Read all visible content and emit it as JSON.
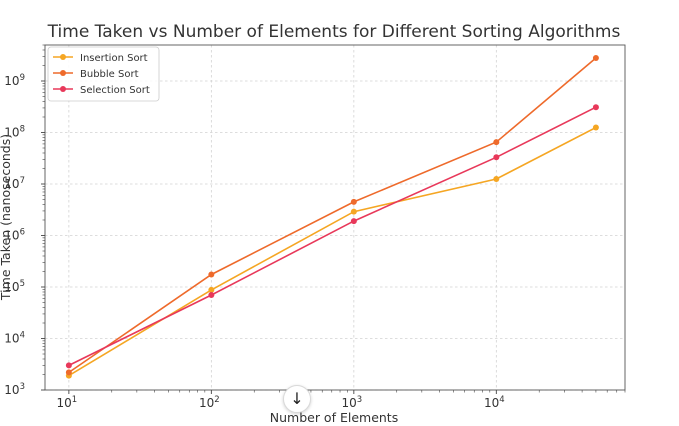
{
  "chart_data": {
    "type": "line",
    "title": "Time Taken vs Number of Elements for Different Sorting Algorithms",
    "xlabel": "Number of Elements",
    "ylabel": "Time Taken (nanoseconds)",
    "xscale": "log",
    "yscale": "log",
    "x": [
      10,
      100,
      1000,
      10000,
      50000
    ],
    "xlim": [
      6.8,
      80000
    ],
    "ylim": [
      1000,
      5000000000
    ],
    "grid": true,
    "legend_position": "top-left",
    "x_ticks": [
      {
        "value": 10,
        "base": "10",
        "exp": "1"
      },
      {
        "value": 100,
        "base": "10",
        "exp": "2"
      },
      {
        "value": 1000,
        "base": "10",
        "exp": "3"
      },
      {
        "value": 10000,
        "base": "10",
        "exp": "4"
      }
    ],
    "y_ticks": [
      {
        "value": 1000,
        "base": "10",
        "exp": "3"
      },
      {
        "value": 10000,
        "base": "10",
        "exp": "4"
      },
      {
        "value": 100000,
        "base": "10",
        "exp": "5"
      },
      {
        "value": 1000000,
        "base": "10",
        "exp": "6"
      },
      {
        "value": 10000000,
        "base": "10",
        "exp": "7"
      },
      {
        "value": 100000000,
        "base": "10",
        "exp": "8"
      },
      {
        "value": 1000000000,
        "base": "10",
        "exp": "9"
      }
    ],
    "series": [
      {
        "name": "Insertion Sort",
        "color": "#f5a623",
        "values": [
          1900,
          88000,
          2900000,
          12500000,
          125000000
        ]
      },
      {
        "name": "Bubble Sort",
        "color": "#ee6a2b",
        "values": [
          2200,
          175000,
          4500000,
          65000000,
          2800000000
        ]
      },
      {
        "name": "Selection Sort",
        "color": "#e8385a",
        "values": [
          3000,
          70000,
          1900000,
          33000000,
          310000000
        ]
      }
    ]
  },
  "overlay": {
    "scroll_button_icon": "arrow-down-icon",
    "scroll_button_glyph": "↓"
  }
}
